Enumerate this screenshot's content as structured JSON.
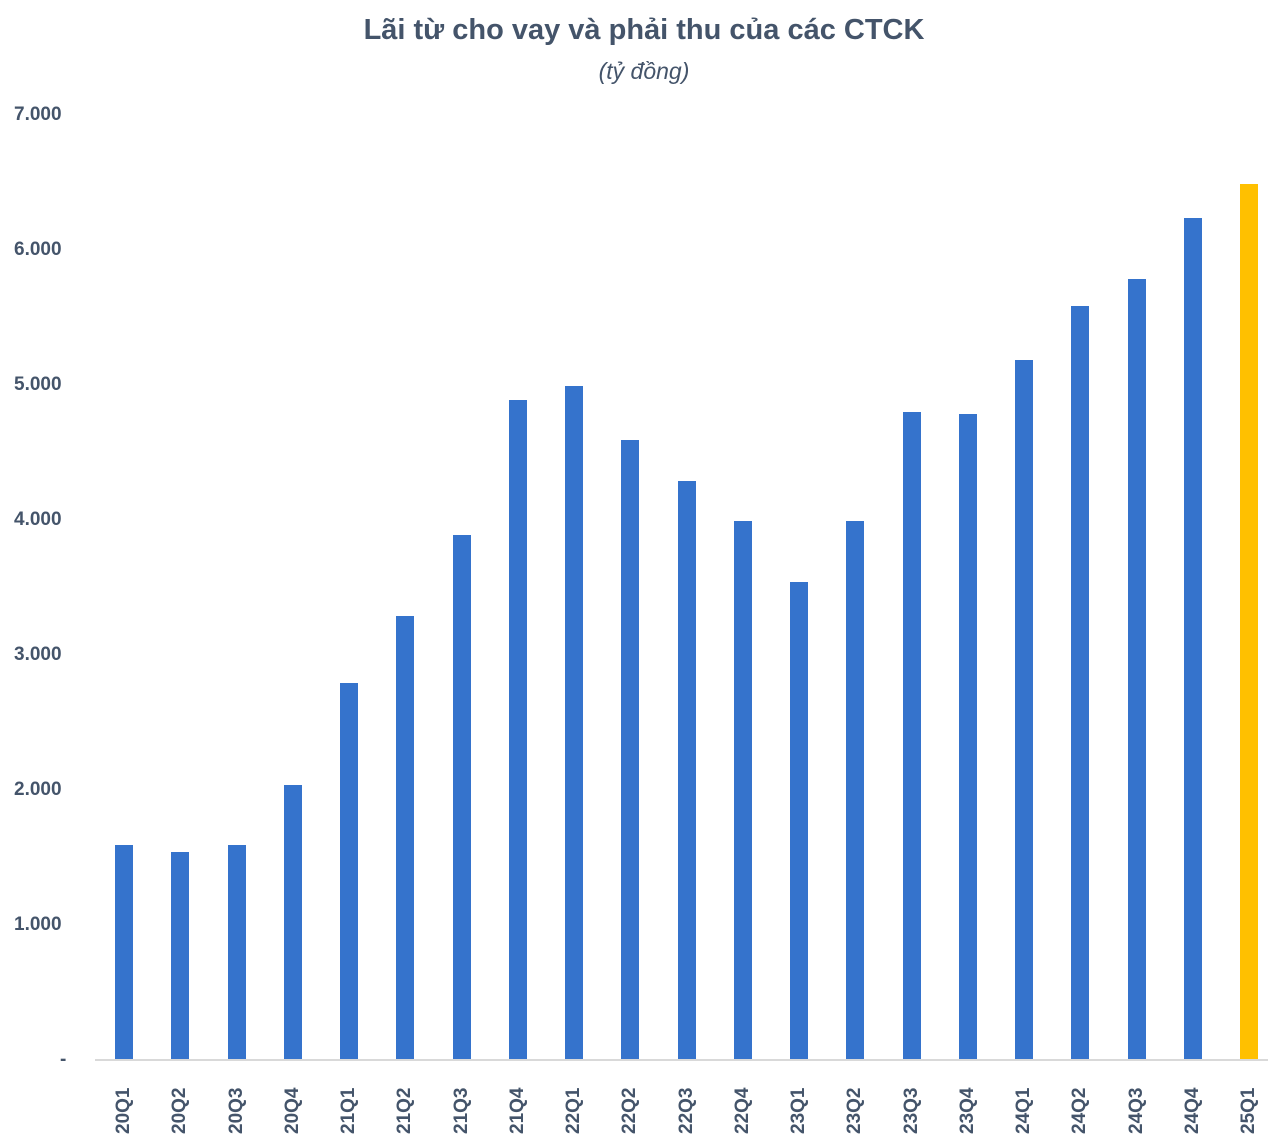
{
  "chart_data": {
    "type": "bar",
    "title": "Lãi từ cho vay và phải thu của các CTCK",
    "subtitle": "(tỷ đồng)",
    "xlabel": "",
    "ylabel": "",
    "ylim": [
      0,
      7000
    ],
    "yticks": [
      "-",
      "1.000",
      "2.000",
      "3.000",
      "4.000",
      "5.000",
      "6.000",
      "7.000"
    ],
    "grid": false,
    "legend": null,
    "categories": [
      "20Q1",
      "20Q2",
      "20Q3",
      "20Q4",
      "21Q1",
      "21Q2",
      "21Q3",
      "21Q4",
      "22Q1",
      "22Q2",
      "22Q3",
      "22Q4",
      "23Q1",
      "23Q2",
      "23Q3",
      "23Q4",
      "24Q1",
      "24Q2",
      "24Q3",
      "24Q4",
      "25Q1"
    ],
    "values": [
      1590,
      1540,
      1590,
      2040,
      2790,
      3290,
      3890,
      4890,
      4990,
      4590,
      4290,
      3990,
      3540,
      3990,
      4800,
      4785,
      5185,
      5585,
      5785,
      6235,
      6490
    ],
    "colors": {
      "default": "#3573cc",
      "highlight": "#ffc000",
      "highlight_category": "25Q1",
      "text": "#44546a",
      "axis": "#d9d9d9"
    }
  }
}
